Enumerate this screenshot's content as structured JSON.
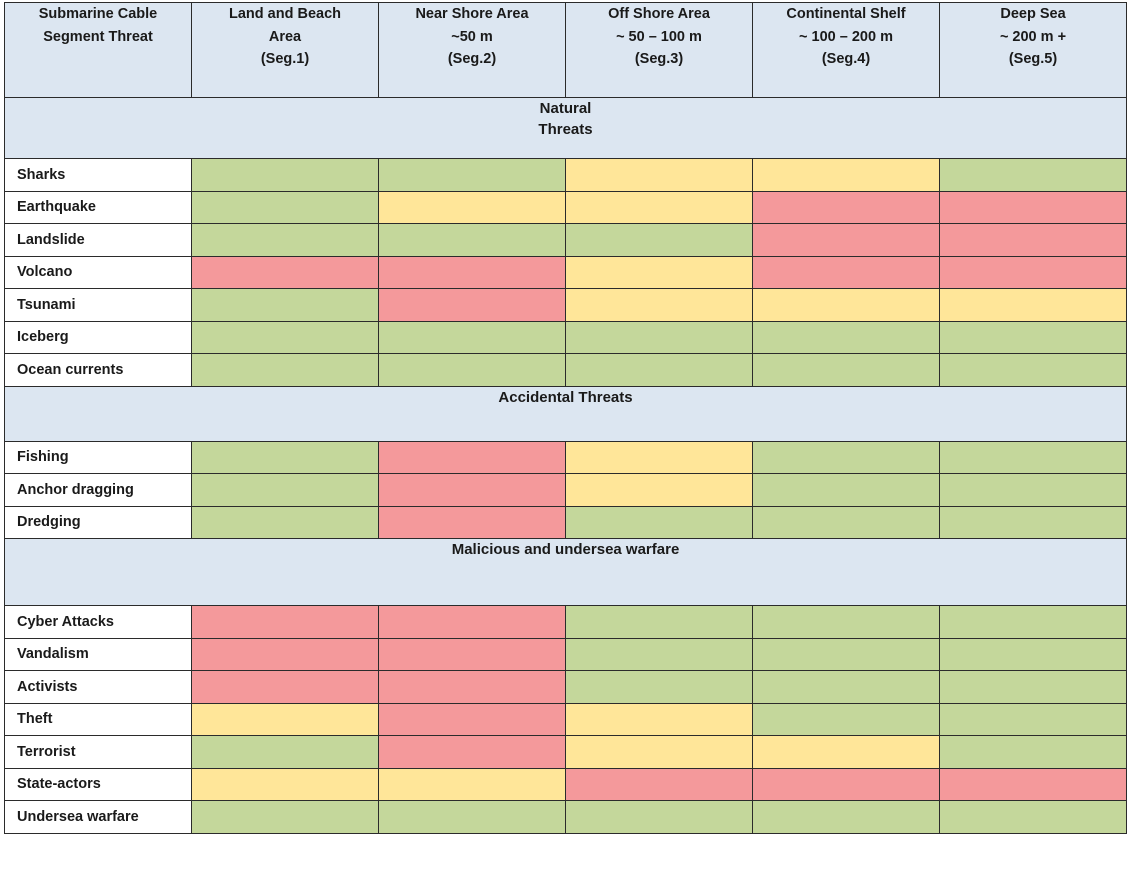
{
  "colors": {
    "green": "#c4d79b",
    "yellow": "#ffe699",
    "red": "#f4999b",
    "header_bg": "#dce6f1"
  },
  "header": [
    [
      "Submarine Cable",
      "Segment Threat"
    ],
    [
      "Land and Beach",
      "Area",
      "(Seg.1)"
    ],
    [
      "Near Shore Area",
      "~50 m",
      "(Seg.2)"
    ],
    [
      "Off Shore Area",
      "~ 50 – 100 m",
      "(Seg.3)"
    ],
    [
      "Continental Shelf",
      "~ 100 – 200 m",
      "(Seg.4)"
    ],
    [
      "Deep Sea",
      "~ 200 m +",
      "(Seg.5)"
    ]
  ],
  "sections": [
    {
      "title_lines": [
        "Natural",
        "Threats"
      ],
      "rows": [
        {
          "label": "Sharks",
          "levels": [
            "green",
            "green",
            "yellow",
            "yellow",
            "green"
          ]
        },
        {
          "label": "Earthquake",
          "levels": [
            "green",
            "yellow",
            "yellow",
            "red",
            "red"
          ]
        },
        {
          "label": "Landslide",
          "levels": [
            "green",
            "green",
            "green",
            "red",
            "red"
          ]
        },
        {
          "label": "Volcano",
          "levels": [
            "red",
            "red",
            "yellow",
            "red",
            "red"
          ]
        },
        {
          "label": "Tsunami",
          "levels": [
            "green",
            "red",
            "yellow",
            "yellow",
            "yellow"
          ]
        },
        {
          "label": "Iceberg",
          "levels": [
            "green",
            "green",
            "green",
            "green",
            "green"
          ]
        },
        {
          "label": "Ocean currents",
          "levels": [
            "green",
            "green",
            "green",
            "green",
            "green"
          ]
        }
      ]
    },
    {
      "title_lines": [
        "Accidental Threats"
      ],
      "rows": [
        {
          "label": "Fishing",
          "levels": [
            "green",
            "red",
            "yellow",
            "green",
            "green"
          ]
        },
        {
          "label": "Anchor dragging",
          "levels": [
            "green",
            "red",
            "yellow",
            "green",
            "green"
          ]
        },
        {
          "label": "Dredging",
          "levels": [
            "green",
            "red",
            "green",
            "green",
            "green"
          ]
        }
      ]
    },
    {
      "title_lines": [
        "Malicious and undersea warfare"
      ],
      "rows": [
        {
          "label": "Cyber Attacks",
          "levels": [
            "red",
            "red",
            "green",
            "green",
            "green"
          ]
        },
        {
          "label": "Vandalism",
          "levels": [
            "red",
            "red",
            "green",
            "green",
            "green"
          ]
        },
        {
          "label": "Activists",
          "levels": [
            "red",
            "red",
            "green",
            "green",
            "green"
          ]
        },
        {
          "label": "Theft",
          "levels": [
            "yellow",
            "red",
            "yellow",
            "green",
            "green"
          ]
        },
        {
          "label": "Terrorist",
          "levels": [
            "green",
            "red",
            "yellow",
            "yellow",
            "green"
          ]
        },
        {
          "label": "State-actors",
          "levels": [
            "yellow",
            "yellow",
            "red",
            "red",
            "red"
          ]
        },
        {
          "label": "Undersea warfare",
          "levels": [
            "green",
            "green",
            "green",
            "green",
            "green"
          ]
        }
      ]
    }
  ]
}
